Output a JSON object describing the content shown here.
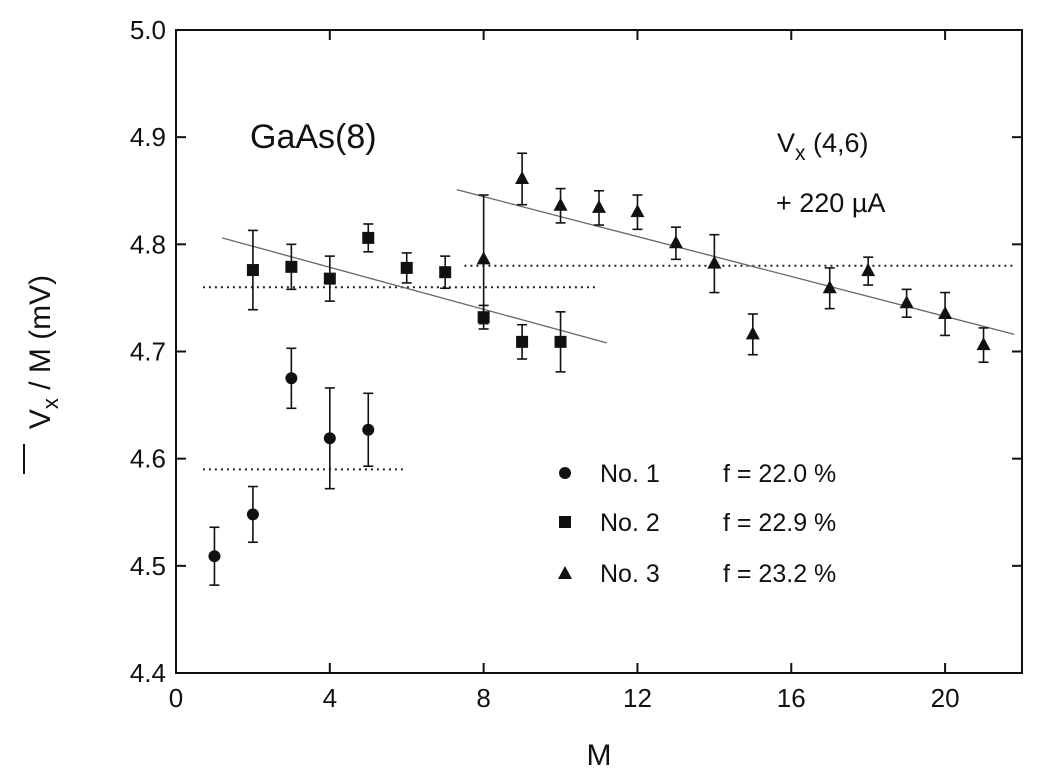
{
  "chart_data": {
    "type": "scatter",
    "title": "",
    "xlabel": "M",
    "ylabel": {
      "main": "V",
      "sub": "x",
      "rest": " / M   (mV)"
    },
    "xlim": [
      0,
      22
    ],
    "ylim": [
      4.4,
      5.0
    ],
    "x_ticks": [
      0,
      4,
      8,
      12,
      16,
      20
    ],
    "y_ticks": [
      4.4,
      4.5,
      4.6,
      4.7,
      4.8,
      4.9,
      5.0
    ],
    "x_tick_labels": [
      "0",
      "4",
      "8",
      "12",
      "16",
      "20"
    ],
    "y_tick_labels": [
      "4.4",
      "4.5",
      "4.6",
      "4.7",
      "4.8",
      "4.9",
      "5.0"
    ],
    "grid": false,
    "annotations": {
      "sample": "GaAs(8)",
      "signal_main": "V",
      "signal_sub": "x",
      "signal_rest": " (4,6)",
      "current": "+ 220 µA"
    },
    "legend_position": "bottom-right",
    "series": [
      {
        "name": "No. 1",
        "legend_extra": "f = 22.0 %",
        "marker": "circle",
        "points": [
          {
            "x": 1,
            "y": 4.509,
            "err": 0.027
          },
          {
            "x": 2,
            "y": 4.548,
            "err": 0.026
          },
          {
            "x": 3,
            "y": 4.675,
            "err": 0.028
          },
          {
            "x": 4,
            "y": 4.619,
            "err": 0.047
          },
          {
            "x": 5,
            "y": 4.627,
            "err": 0.034
          }
        ]
      },
      {
        "name": "No. 2",
        "legend_extra": "f = 22.9 %",
        "marker": "square",
        "points": [
          {
            "x": 2,
            "y": 4.776,
            "err": 0.037
          },
          {
            "x": 3,
            "y": 4.779,
            "err": 0.021
          },
          {
            "x": 4,
            "y": 4.768,
            "err": 0.021
          },
          {
            "x": 5,
            "y": 4.806,
            "err": 0.013
          },
          {
            "x": 6,
            "y": 4.778,
            "err": 0.014
          },
          {
            "x": 7,
            "y": 4.774,
            "err": 0.015
          },
          {
            "x": 8,
            "y": 4.732,
            "err": 0.011
          },
          {
            "x": 9,
            "y": 4.709,
            "err": 0.016
          },
          {
            "x": 10,
            "y": 4.709,
            "err": 0.028
          }
        ]
      },
      {
        "name": "No. 3",
        "legend_extra": "f = 23.2 %",
        "marker": "triangle",
        "points": [
          {
            "x": 8,
            "y": 4.786,
            "err": 0.06
          },
          {
            "x": 9,
            "y": 4.861,
            "err": 0.024
          },
          {
            "x": 10,
            "y": 4.836,
            "err": 0.016
          },
          {
            "x": 11,
            "y": 4.834,
            "err": 0.016
          },
          {
            "x": 12,
            "y": 4.83,
            "err": 0.016
          },
          {
            "x": 13,
            "y": 4.801,
            "err": 0.015
          },
          {
            "x": 14,
            "y": 4.782,
            "err": 0.027
          },
          {
            "x": 15,
            "y": 4.716,
            "err": 0.019
          },
          {
            "x": 17,
            "y": 4.759,
            "err": 0.019
          },
          {
            "x": 18,
            "y": 4.775,
            "err": 0.013
          },
          {
            "x": 19,
            "y": 4.745,
            "err": 0.013
          },
          {
            "x": 20,
            "y": 4.735,
            "err": 0.02
          },
          {
            "x": 21,
            "y": 4.706,
            "err": 0.016
          }
        ]
      }
    ],
    "reference_lines": [
      {
        "name": "mean-line-no1",
        "style": "dotted",
        "x": [
          0.7,
          6.0
        ],
        "y": [
          4.59,
          4.59
        ]
      },
      {
        "name": "mean-line-no2",
        "style": "dotted",
        "x": [
          0.7,
          11.0
        ],
        "y": [
          4.76,
          4.76
        ]
      },
      {
        "name": "mean-line-no3",
        "style": "dotted",
        "x": [
          7.5,
          21.8
        ],
        "y": [
          4.78,
          4.78
        ]
      },
      {
        "name": "fit-line-no2",
        "style": "solid-thin",
        "x": [
          1.2,
          11.2
        ],
        "y": [
          4.806,
          4.708
        ]
      },
      {
        "name": "fit-line-no3",
        "style": "solid-thin",
        "x": [
          7.3,
          21.8
        ],
        "y": [
          4.851,
          4.716
        ]
      }
    ]
  }
}
